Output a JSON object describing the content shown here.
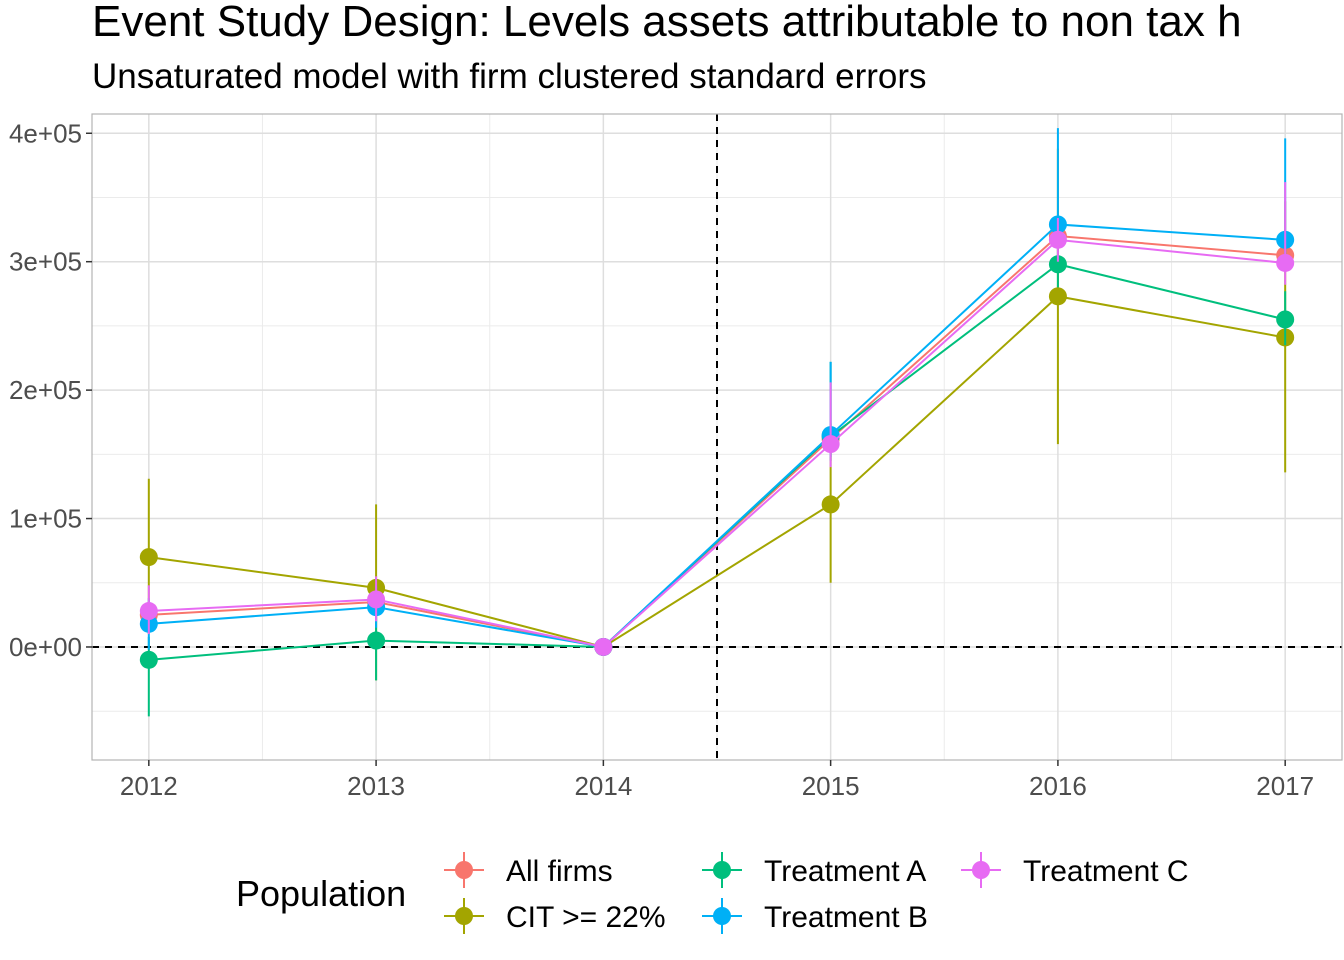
{
  "chart_data": {
    "type": "line",
    "title": "Event Study Design: Levels assets attributable to non tax h",
    "subtitle": "Unsaturated model with firm clustered standard errors",
    "xlabel": "",
    "ylabel": "",
    "x": [
      2012,
      2013,
      2014,
      2015,
      2016,
      2017
    ],
    "x_tick_labels": [
      "2012",
      "2013",
      "2014",
      "2015",
      "2016",
      "2017"
    ],
    "xlim": [
      2011.75,
      2017.25
    ],
    "ylim": [
      -75000,
      400000
    ],
    "y_tick_values": [
      0,
      100000,
      200000,
      300000,
      400000
    ],
    "y_tick_labels": [
      "0e+00",
      "1e+05",
      "2e+05",
      "3e+05",
      "4e+05"
    ],
    "reference_lines": {
      "y": 0,
      "x": 2014.5
    },
    "grid": true,
    "legend": {
      "title": "Population",
      "position": "bottom"
    },
    "series": [
      {
        "name": "All firms",
        "color": "#F8766D",
        "values": [
          25000,
          35000,
          0,
          162000,
          320000,
          305000
        ],
        "lower": [
          25000,
          35000,
          0,
          162000,
          320000,
          305000
        ],
        "upper": [
          25000,
          35000,
          0,
          162000,
          320000,
          305000
        ]
      },
      {
        "name": "CIT >= 22%",
        "color": "#A3A500",
        "values": [
          70000,
          46000,
          0,
          111000,
          273000,
          241000
        ],
        "lower": [
          10000,
          -26000,
          0,
          50000,
          158000,
          136000
        ],
        "upper": [
          131000,
          111000,
          0,
          174000,
          388000,
          347000
        ]
      },
      {
        "name": "Treatment A",
        "color": "#00BF7D",
        "values": [
          -10000,
          5000,
          0,
          164000,
          298000,
          255000
        ],
        "lower": [
          -54000,
          -26000,
          0,
          145000,
          280000,
          235000
        ],
        "upper": [
          8000,
          30000,
          0,
          222000,
          320000,
          277000
        ]
      },
      {
        "name": "Treatment B",
        "color": "#00B0F6",
        "values": [
          18000,
          31000,
          0,
          165000,
          329000,
          317000
        ],
        "lower": [
          -2000,
          15000,
          0,
          148000,
          312000,
          300000
        ],
        "upper": [
          38000,
          48000,
          0,
          222000,
          404000,
          396000
        ]
      },
      {
        "name": "Treatment C",
        "color": "#E76BF3",
        "values": [
          28000,
          37000,
          0,
          158000,
          317000,
          299000
        ],
        "lower": [
          10000,
          20000,
          0,
          140000,
          300000,
          282000
        ],
        "upper": [
          48000,
          55000,
          0,
          206000,
          334000,
          362000
        ]
      }
    ]
  }
}
